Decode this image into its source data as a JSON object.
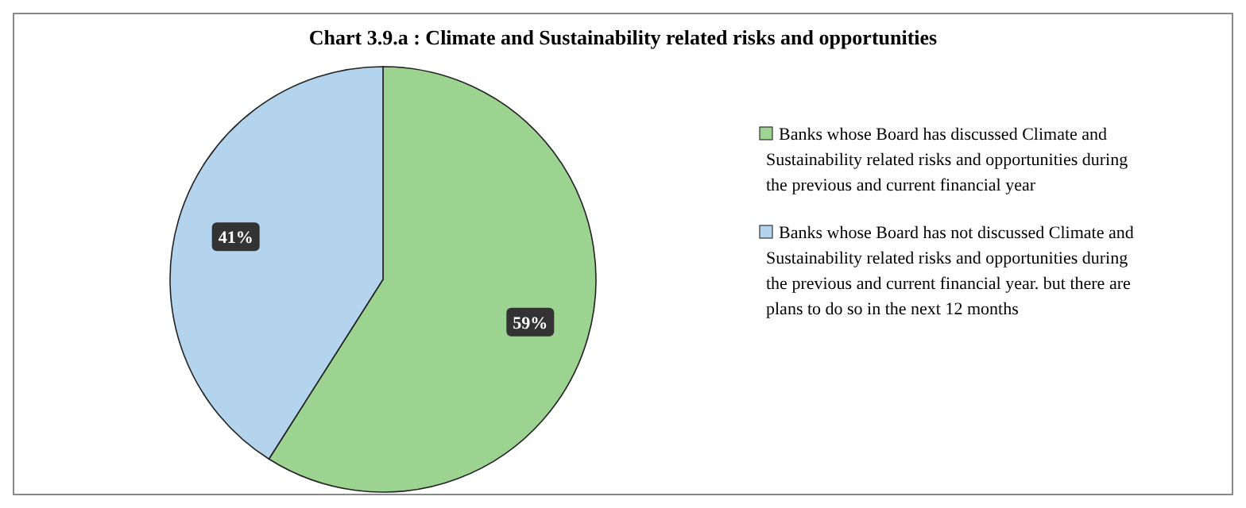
{
  "chart_data": {
    "type": "pie",
    "title": "Chart 3.9.a : Climate and Sustainability related risks and opportunities",
    "categories": [
      "Banks whose Board has discussed Climate and Sustainability related risks and opportunities during the previous and current financial year",
      "Banks whose Board has not discussed Climate and Sustainability related risks and opportunities during the previous and current financial year. but there are plans to do so in the next 12 months"
    ],
    "values": [
      59,
      41
    ],
    "colors": [
      "#9dd390",
      "#b4d3ec"
    ],
    "value_labels": [
      "59%",
      "41%"
    ],
    "legend": "right"
  }
}
